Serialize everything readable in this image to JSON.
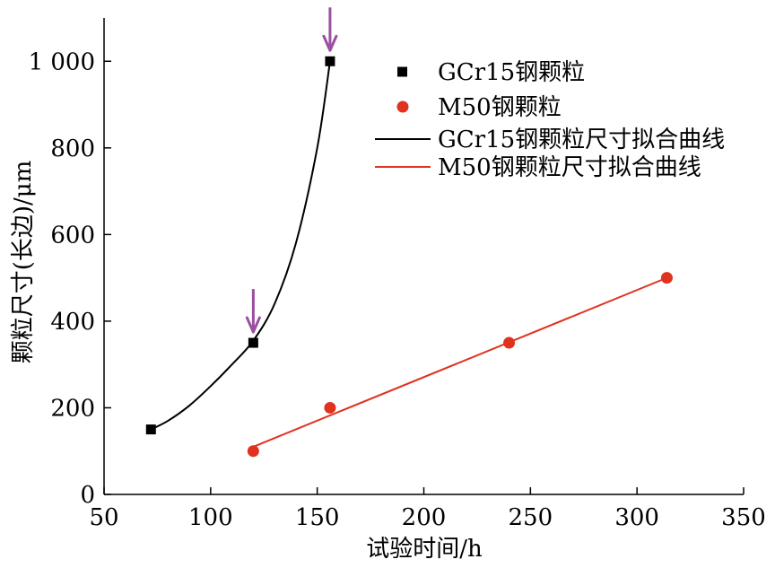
{
  "chart_data": {
    "type": "scatter",
    "title": "",
    "xlabel": "试验时间/h",
    "ylabel": "颗粒尺寸(长边)/μm",
    "xlim": [
      50,
      350
    ],
    "ylim": [
      0,
      1100
    ],
    "x_ticks": [
      50,
      100,
      150,
      200,
      250,
      300,
      350
    ],
    "x_tick_labels": [
      "50",
      "100",
      "150",
      "200",
      "250",
      "300",
      "350"
    ],
    "y_ticks": [
      0,
      200,
      400,
      600,
      800,
      1000
    ],
    "y_tick_labels": [
      "0",
      "200",
      "400",
      "600",
      "800",
      "1 000"
    ],
    "grid": false,
    "legend_position": "top-right",
    "series": [
      {
        "name": "GCr15钢颗粒",
        "kind": "points",
        "marker": "square",
        "color": "#000000",
        "x": [
          72,
          120,
          156
        ],
        "y": [
          150,
          350,
          1000
        ]
      },
      {
        "name": "M50钢颗粒",
        "kind": "points",
        "marker": "circle",
        "color": "#e0321e",
        "x": [
          120,
          156,
          240,
          314
        ],
        "y": [
          100,
          200,
          350,
          500
        ]
      },
      {
        "name": "GCr15钢颗粒尺寸拟合曲线",
        "kind": "curve",
        "color": "#000000",
        "x": [
          72,
          80,
          90,
          100,
          110,
          120,
          130,
          140,
          150,
          156
        ],
        "y": [
          150,
          170,
          205,
          250,
          300,
          355,
          440,
          580,
          800,
          1000
        ]
      },
      {
        "name": "M50钢颗粒尺寸拟合曲线",
        "kind": "line",
        "color": "#e0321e",
        "x": [
          120,
          314
        ],
        "y": [
          110,
          500
        ]
      }
    ],
    "annotations": [
      {
        "kind": "arrow",
        "color": "#9b4fa0",
        "x": 156,
        "y": 1000
      },
      {
        "kind": "arrow",
        "color": "#9b4fa0",
        "x": 120,
        "y": 350
      }
    ]
  }
}
